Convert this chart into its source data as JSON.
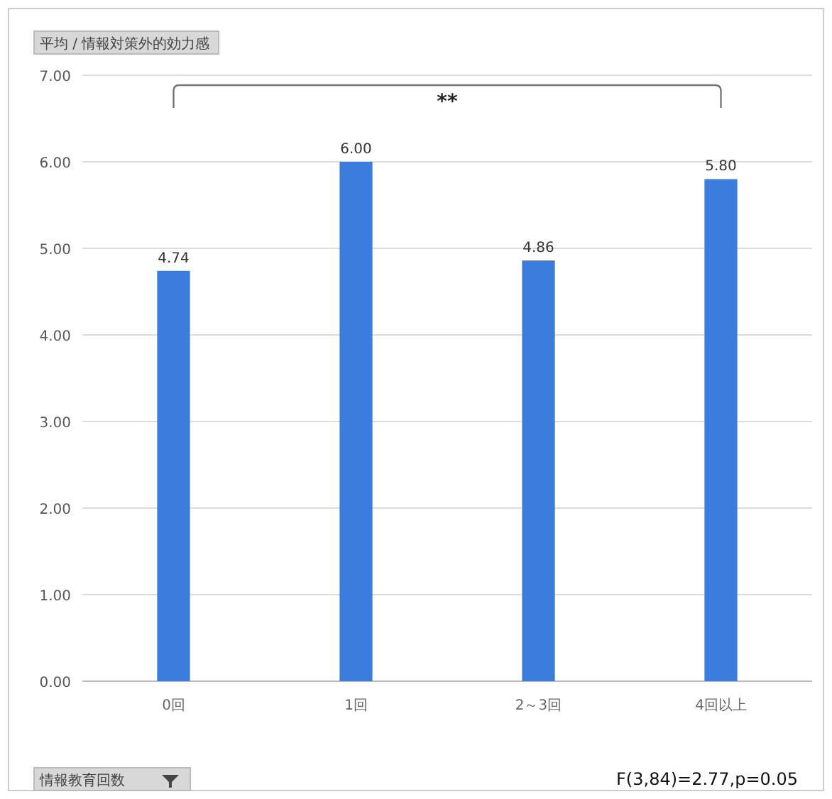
{
  "chart_data": {
    "type": "bar",
    "ylabel": "平均 / 情報対策外的効力感",
    "xlabel": "情報教育回数",
    "categories": [
      "0回",
      "1回",
      "2～3回",
      "4回以上"
    ],
    "values": [
      4.74,
      6.0,
      4.86,
      5.8
    ],
    "color": "#3b7ddd",
    "value_labels": [
      "4.74",
      "6.00",
      "4.86",
      "5.80"
    ],
    "ylim": [
      0,
      7
    ],
    "yticks": [
      {
        "value": 0,
        "label": "0.00"
      },
      {
        "value": 1,
        "label": "1.00"
      },
      {
        "value": 2,
        "label": "2.00"
      },
      {
        "value": 3,
        "label": "3.00"
      },
      {
        "value": 4,
        "label": "4.00"
      },
      {
        "value": 5,
        "label": "5.00"
      },
      {
        "value": 6,
        "label": "6.00"
      },
      {
        "value": 7,
        "label": "7.00"
      }
    ],
    "grid": "y",
    "annotations": [
      "**",
      "F(3,84)=2.77,p=0.05"
    ]
  }
}
